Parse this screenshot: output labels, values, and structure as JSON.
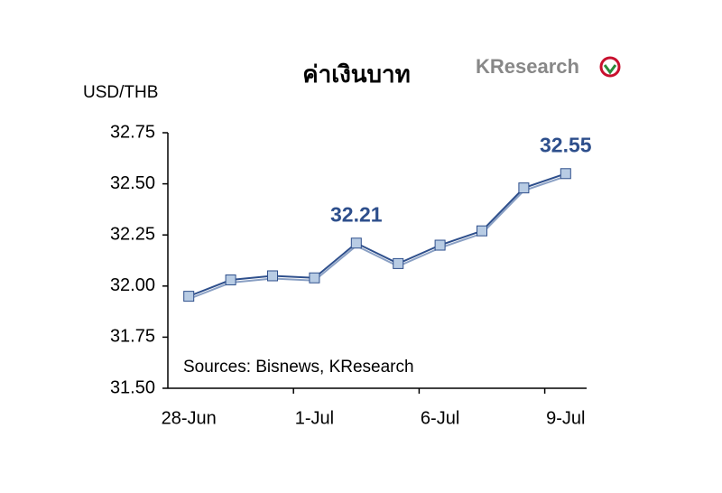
{
  "chart_data": {
    "type": "line",
    "title": "ค่าเงินบาท",
    "y_label": "USD/THB",
    "logo": "KResearch",
    "source": "Sources: Bisnews, KResearch",
    "categories": [
      "28-Jun",
      null,
      null,
      "1-Jul",
      null,
      null,
      "6-Jul",
      null,
      null,
      "9-Jul"
    ],
    "series": [
      {
        "name": "USD/THB",
        "color": "#2e4f8c",
        "marker_color": "#b8cce4",
        "values": [
          31.95,
          32.03,
          32.05,
          32.04,
          32.21,
          32.11,
          32.2,
          32.27,
          32.48,
          32.55
        ],
        "value_labels": [
          null,
          null,
          null,
          null,
          "32.21",
          null,
          null,
          null,
          null,
          "32.55"
        ]
      }
    ],
    "ylim": [
      31.5,
      32.75
    ],
    "yticks": [
      {
        "value": 31.5,
        "label": "31.50"
      },
      31.75,
      {
        "value": 32,
        "label": "32.00"
      },
      32.25,
      {
        "value": 32.5,
        "label": "32.50"
      },
      32.75
    ]
  }
}
